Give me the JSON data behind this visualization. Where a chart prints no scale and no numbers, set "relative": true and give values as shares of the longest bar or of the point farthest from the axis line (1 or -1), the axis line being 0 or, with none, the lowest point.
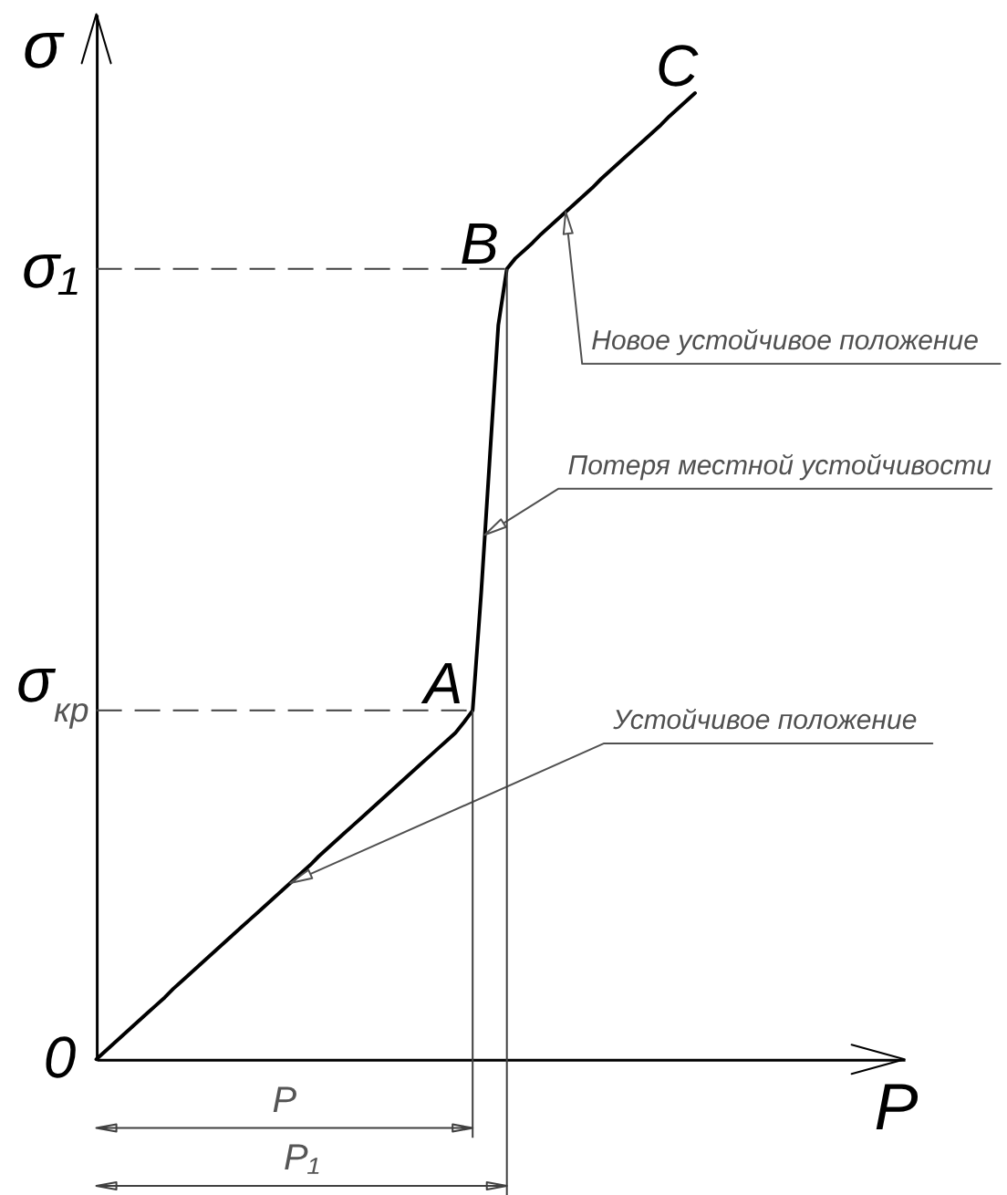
{
  "chart_data": {
    "type": "line",
    "xlabel": "P",
    "ylabel": "σ",
    "relative": true,
    "line_style": "solid",
    "categories": [
      null,
      null,
      null,
      null,
      null,
      null,
      null,
      null,
      null,
      null,
      null,
      null,
      null,
      null,
      null,
      null,
      null,
      null,
      null,
      null,
      null,
      null,
      null,
      null,
      null,
      null,
      null,
      null,
      null,
      null,
      null,
      null,
      null,
      null,
      null,
      null,
      null,
      null,
      null,
      null,
      null,
      null,
      null,
      null,
      null,
      null,
      null,
      null,
      null,
      null,
      null,
      null,
      null,
      null,
      null,
      null,
      null,
      null,
      null,
      null,
      null,
      null,
      null,
      null,
      null,
      null,
      null,
      null,
      null,
      null,
      null
    ],
    "series": [
      {
        "color": "#000000",
        "values": [
          0,
          0.008,
          0.016,
          0.024,
          0.032,
          0.04,
          0.048,
          0.056,
          0.064,
          0.073,
          0.081,
          0.089,
          0.097,
          0.105,
          0.113,
          0.121,
          0.129,
          0.137,
          0.145,
          0.153,
          0.161,
          0.169,
          0.177,
          0.185,
          0.193,
          0.201,
          0.21,
          0.218,
          0.226,
          0.234,
          0.242,
          0.25,
          0.258,
          0.266,
          0.274,
          0.282,
          0.29,
          0.298,
          0.306,
          0.314,
          0.322,
          0.33,
          0.338,
          0.349,
          0.361,
          0.483,
          0.622,
          0.76,
          0.818,
          0.829,
          0.837,
          0.845,
          0.854,
          0.862,
          0.87,
          0.878,
          0.886,
          0.894,
          0.902,
          0.911,
          0.919,
          0.927,
          0.935,
          0.943,
          0.951,
          0.959,
          0.967,
          0.976,
          0.984,
          0.992,
          1
        ]
      }
    ],
    "ref_lines": [
      {
        "axis": "y",
        "value": 0.361,
        "label": "σ$_{кр}$",
        "line_style": "dashed",
        "color": "#404040"
      },
      {
        "axis": "y",
        "value": 0.818,
        "label": "σ₁",
        "line_style": "dashed",
        "color": "#404040"
      }
    ],
    "annotations": [
      "0",
      "A",
      "B",
      "C",
      "Устойчивое положение",
      "Потеря местной устойчивости",
      "Новое устойчивое положение",
      "P",
      "P₁"
    ]
  }
}
